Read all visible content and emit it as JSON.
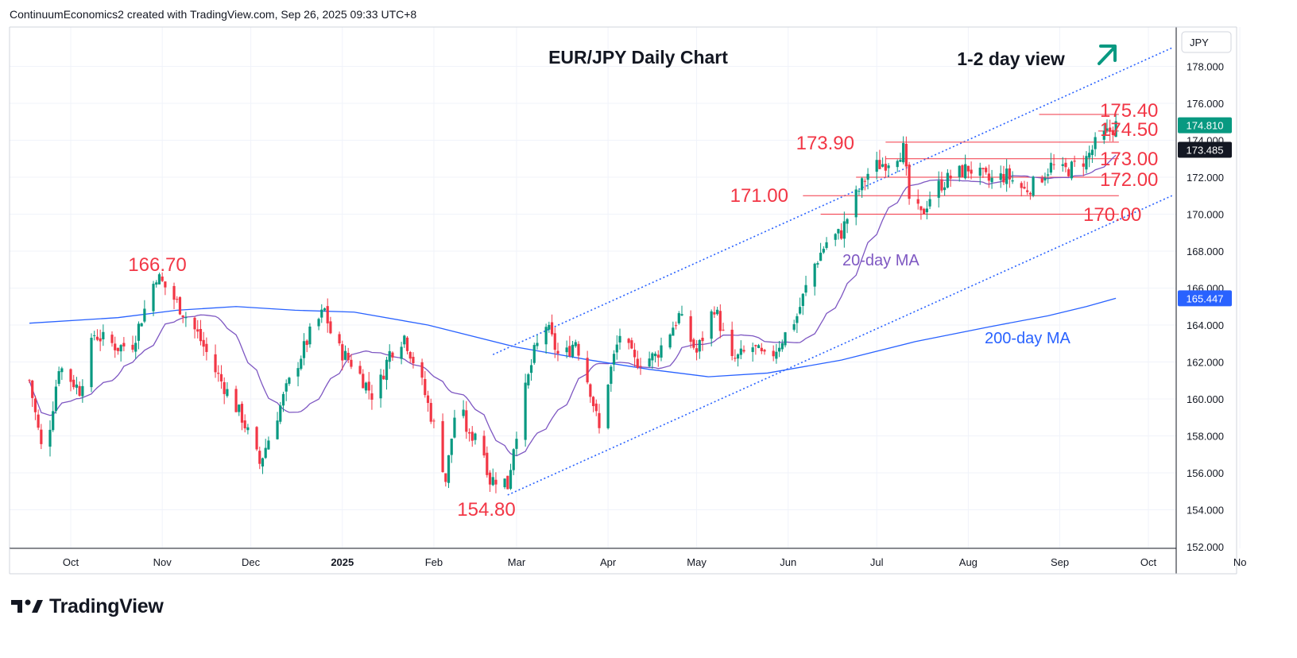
{
  "header": {
    "attribution": "ContinuumEconomics2 created with TradingView.com, Sep 26, 2025 09:33 UTC+8"
  },
  "footer": {
    "brand": "TradingView"
  },
  "chart_data": {
    "type": "candlestick",
    "title": "EUR/JPY Daily Chart",
    "subtitle": "1-2 day view",
    "currency": "JPY",
    "ylim": [
      152,
      179.8
    ],
    "y_ticks": [
      "152.000",
      "154.000",
      "156.000",
      "158.000",
      "160.000",
      "162.000",
      "164.000",
      "166.000",
      "168.000",
      "170.000",
      "172.000",
      "174.000",
      "176.000",
      "178.000"
    ],
    "x_ticks": [
      {
        "label": "Oct",
        "day": 14
      },
      {
        "label": "Nov",
        "day": 45
      },
      {
        "label": "Dec",
        "day": 75
      },
      {
        "label": "2025",
        "day": 106,
        "bold": true
      },
      {
        "label": "Feb",
        "day": 137
      },
      {
        "label": "Mar",
        "day": 165
      },
      {
        "label": "Apr",
        "day": 196
      },
      {
        "label": "May",
        "day": 226
      },
      {
        "label": "Jun",
        "day": 257
      },
      {
        "label": "Jul",
        "day": 287
      },
      {
        "label": "Aug",
        "day": 318
      },
      {
        "label": "Sep",
        "day": 349
      },
      {
        "label": "Oct",
        "day": 379
      },
      {
        "label": "No",
        "day": 410
      }
    ],
    "last_price": {
      "value": 174.81,
      "label": "174.810",
      "color": "#089981"
    },
    "ma20_price": {
      "value": 173.485,
      "label": "173.485",
      "color": "#131722"
    },
    "ma200_price": {
      "value": 165.447,
      "label": "165.447",
      "color": "#2962ff"
    },
    "levels": [
      {
        "label": "175.40",
        "value": 175.4,
        "from_day": 342
      },
      {
        "label": "174.50",
        "value": 174.5,
        "from_day": 362
      },
      {
        "label": "173.90",
        "value": 173.9,
        "from_day": 290
      },
      {
        "label": "173.00",
        "value": 173.0,
        "from_day": 290
      },
      {
        "label": "172.00",
        "value": 172.0,
        "from_day": 280
      },
      {
        "label": "171.00",
        "value": 171.0,
        "from_day": 262
      },
      {
        "label": "170.00",
        "value": 170.0,
        "from_day": 268
      }
    ],
    "annotations": [
      {
        "label": "166.70",
        "day": 43,
        "value": 166.7
      },
      {
        "label": "154.80",
        "day": 162,
        "value": 154.8
      }
    ],
    "ma_labels": {
      "ma20": "20-day MA",
      "ma200": "200-day MA"
    },
    "channel": {
      "upper": [
        [
          157,
          162.4
        ],
        [
          387,
          179.0
        ]
      ],
      "lower": [
        [
          162,
          154.8
        ],
        [
          387,
          171.0
        ]
      ]
    },
    "ohlc_anchors": [
      [
        0,
        161.0
      ],
      [
        5,
        156.5
      ],
      [
        10,
        161.8
      ],
      [
        17,
        160.5
      ],
      [
        22,
        163.5
      ],
      [
        30,
        162.8
      ],
      [
        35,
        163.0
      ],
      [
        43,
        166.7
      ],
      [
        50,
        165.2
      ],
      [
        57,
        163.5
      ],
      [
        63,
        161.5
      ],
      [
        72,
        159.0
      ],
      [
        78,
        156.5
      ],
      [
        87,
        160.5
      ],
      [
        95,
        163.5
      ],
      [
        100,
        164.8
      ],
      [
        103,
        163.0
      ],
      [
        110,
        161.8
      ],
      [
        117,
        160.0
      ],
      [
        122,
        162.5
      ],
      [
        127,
        163.4
      ],
      [
        133,
        160.8
      ],
      [
        138,
        158.0
      ],
      [
        141,
        155.6
      ],
      [
        145,
        160.2
      ],
      [
        149,
        157.8
      ],
      [
        152,
        158.5
      ],
      [
        156,
        155.6
      ],
      [
        160,
        155.8
      ],
      [
        162,
        155.3
      ],
      [
        164,
        157.5
      ],
      [
        167,
        159.8
      ],
      [
        171,
        162.5
      ],
      [
        175,
        164.0
      ],
      [
        180,
        162.0
      ],
      [
        185,
        163.2
      ],
      [
        190,
        160.5
      ],
      [
        193,
        158.3
      ],
      [
        196,
        161.0
      ],
      [
        200,
        163.5
      ],
      [
        205,
        162.0
      ],
      [
        212,
        162.3
      ],
      [
        220,
        164.5
      ],
      [
        226,
        162.5
      ],
      [
        232,
        165.0
      ],
      [
        238,
        162.0
      ],
      [
        245,
        162.8
      ],
      [
        250,
        162.0
      ],
      [
        256,
        163.5
      ],
      [
        260,
        164.5
      ],
      [
        265,
        167.0
      ],
      [
        270,
        168.5
      ],
      [
        275,
        169.0
      ],
      [
        280,
        171.0
      ],
      [
        285,
        172.5
      ],
      [
        290,
        172.8
      ],
      [
        296,
        173.5
      ],
      [
        298,
        170.8
      ],
      [
        302,
        169.9
      ],
      [
        306,
        171.3
      ],
      [
        312,
        172.0
      ],
      [
        318,
        172.5
      ],
      [
        325,
        171.8
      ],
      [
        331,
        172.1
      ],
      [
        337,
        171.3
      ],
      [
        341,
        171.7
      ],
      [
        346,
        172.6
      ],
      [
        350,
        172.3
      ],
      [
        353,
        172.5
      ],
      [
        358,
        173.0
      ],
      [
        362,
        174.0
      ],
      [
        366,
        174.5
      ],
      [
        368,
        174.81
      ]
    ],
    "ma200_points": [
      [
        0,
        164.1
      ],
      [
        30,
        164.4
      ],
      [
        50,
        164.8
      ],
      [
        70,
        165.0
      ],
      [
        90,
        164.8
      ],
      [
        110,
        164.7
      ],
      [
        135,
        164.0
      ],
      [
        165,
        162.8
      ],
      [
        190,
        162.1
      ],
      [
        210,
        161.6
      ],
      [
        230,
        161.2
      ],
      [
        250,
        161.4
      ],
      [
        275,
        162.1
      ],
      [
        300,
        163.1
      ],
      [
        325,
        163.9
      ],
      [
        345,
        164.5
      ],
      [
        358,
        165.0
      ],
      [
        368,
        165.447
      ]
    ],
    "colors": {
      "up": "#089981",
      "down": "#f23645",
      "ma20": "#7e57c2",
      "ma200": "#2962ff",
      "level": "#f23645",
      "channel": "#2962ff",
      "arrow": "#089981"
    }
  }
}
